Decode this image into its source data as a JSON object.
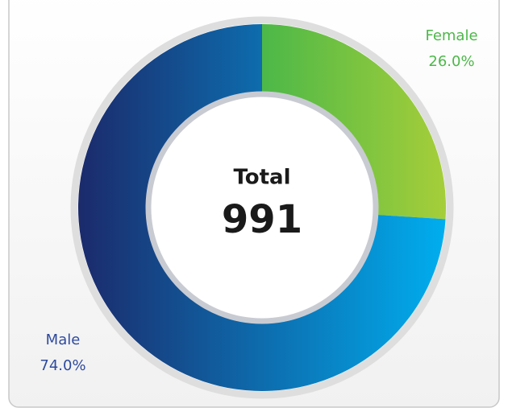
{
  "chart_data": {
    "type": "donut",
    "categories": [
      "Female",
      "Male"
    ],
    "values": [
      26.0,
      74.0
    ],
    "value_labels": [
      "26.0%",
      "74.0%"
    ],
    "colors": [
      [
        "#4cb848",
        "#a6ce39"
      ],
      [
        "#1b2a6b",
        "#00aeef"
      ]
    ],
    "label_colors": [
      "#4cb848",
      "#2e4a9e"
    ],
    "center_title": "Total",
    "center_value": 991
  }
}
